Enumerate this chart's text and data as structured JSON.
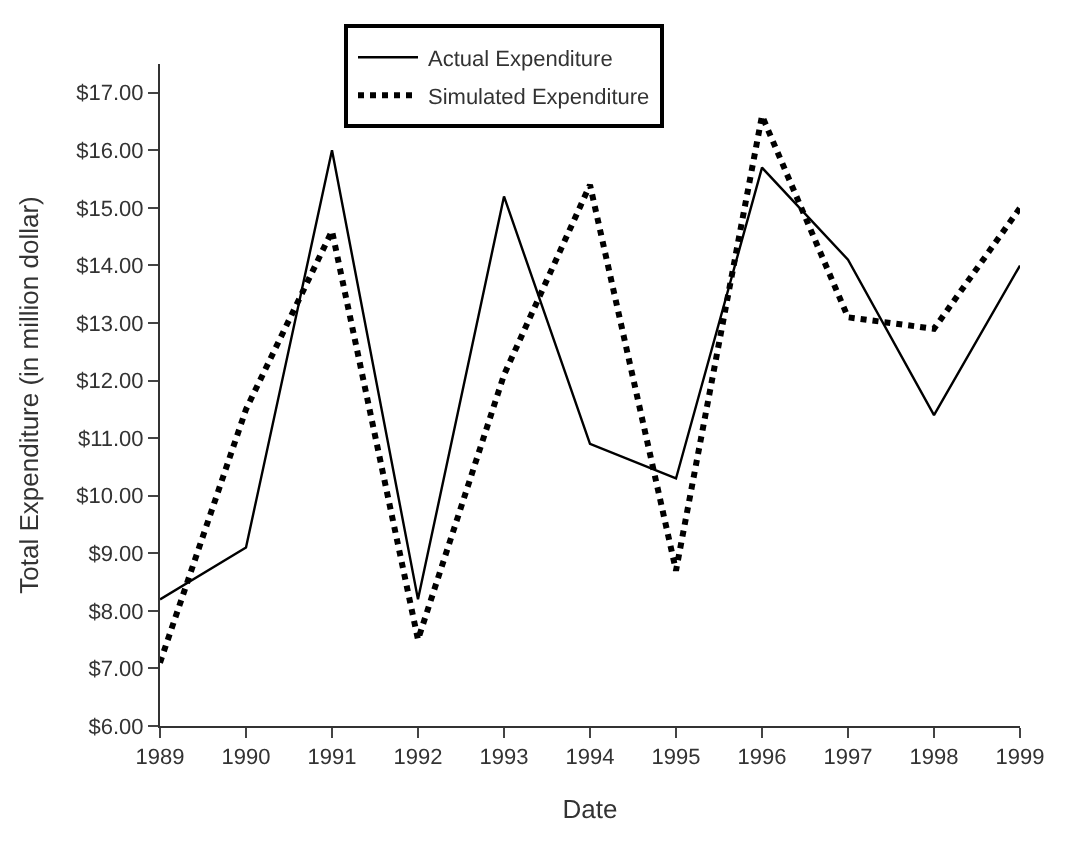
{
  "chart_data": {
    "type": "line",
    "xlabel": "Date",
    "ylabel": "Total Expenditure (in million dollar)",
    "x": [
      1989,
      1990,
      1991,
      1992,
      1993,
      1994,
      1995,
      1996,
      1997,
      1998,
      1999
    ],
    "series": [
      {
        "name": "Actual Expenditure",
        "color": "#000000",
        "line_style": "solid",
        "values": [
          8.2,
          9.1,
          16.0,
          8.2,
          15.2,
          10.9,
          10.3,
          15.7,
          14.1,
          11.4,
          14.0
        ]
      },
      {
        "name": "Simulated Expenditure",
        "color": "#000000",
        "line_style": "dotted",
        "values": [
          7.1,
          11.5,
          14.6,
          7.5,
          12.1,
          15.4,
          8.7,
          16.6,
          13.1,
          12.9,
          15.0
        ]
      }
    ],
    "xlim": [
      1989,
      1999
    ],
    "xticks": [
      1989,
      1990,
      1991,
      1992,
      1993,
      1994,
      1995,
      1996,
      1997,
      1998,
      1999
    ],
    "ylim": [
      6,
      17.5
    ],
    "yticks": [
      {
        "value": 6,
        "label": "$6.00"
      },
      {
        "value": 7,
        "label": "$7.00"
      },
      {
        "value": 8,
        "label": "$8.00"
      },
      {
        "value": 9,
        "label": "$9.00"
      },
      {
        "value": 10,
        "label": "$10.00"
      },
      {
        "value": 11,
        "label": "$11.00"
      },
      {
        "value": 12,
        "label": "$12.00"
      },
      {
        "value": 13,
        "label": "$13.00"
      },
      {
        "value": 14,
        "label": "$14.00"
      },
      {
        "value": 15,
        "label": "$15.00"
      },
      {
        "value": 16,
        "label": "$16.00"
      },
      {
        "value": 17,
        "label": "$17.00"
      }
    ],
    "legend": "top",
    "marker": "none"
  }
}
